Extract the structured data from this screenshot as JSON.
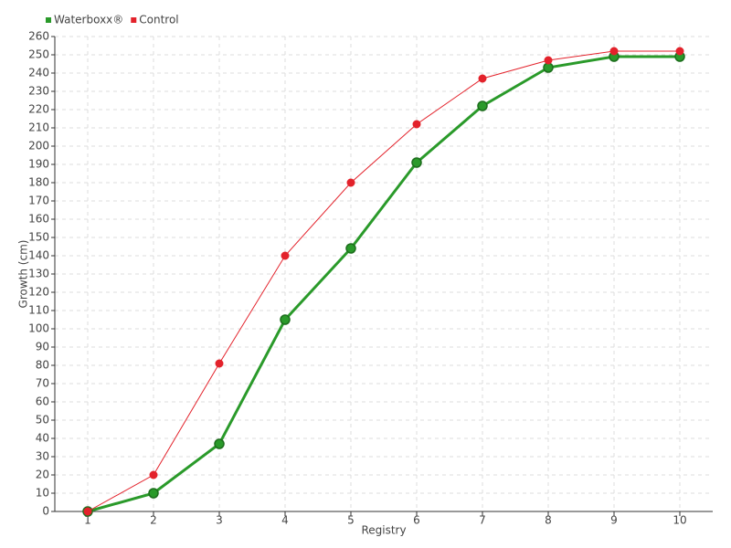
{
  "chart_data": {
    "type": "line",
    "x_label": "Registry",
    "y_label": "Growth (cm)",
    "categories": [
      "1",
      "2",
      "3",
      "4",
      "5",
      "6",
      "7",
      "8",
      "9",
      "10"
    ],
    "series": [
      {
        "name": "Waterboxx®",
        "color": "#2a9a2a",
        "values": [
          0,
          10,
          37,
          105,
          144,
          191,
          222,
          243,
          249,
          249
        ]
      },
      {
        "name": "Control",
        "color": "#e3222b",
        "values": [
          0,
          20,
          81,
          140,
          180,
          212,
          237,
          247,
          252,
          252
        ]
      }
    ],
    "ylim": [
      0,
      260
    ],
    "yticks": [
      0,
      10,
      20,
      30,
      40,
      50,
      60,
      70,
      80,
      90,
      100,
      110,
      120,
      130,
      140,
      150,
      160,
      170,
      180,
      190,
      200,
      210,
      220,
      230,
      240,
      250,
      260
    ],
    "grid": true,
    "legend": "top-left"
  }
}
